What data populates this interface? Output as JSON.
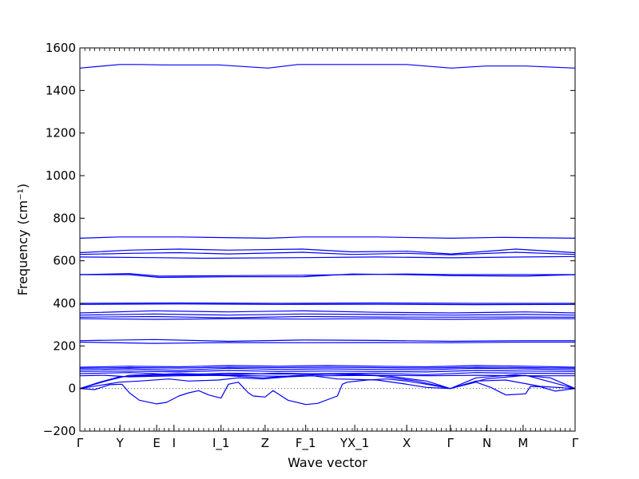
{
  "chart_data": {
    "type": "line",
    "title": "",
    "xlabel": "Wave vector",
    "ylabel": "Frequency",
    "ylabel_unit": "(cm⁻¹)",
    "ylim": [
      -200,
      1600
    ],
    "yticks": [
      -200,
      0,
      200,
      400,
      600,
      800,
      1000,
      1200,
      1400,
      1600
    ],
    "ytick_labels": [
      "−200",
      "0",
      "200",
      "400",
      "600",
      "800",
      "1000",
      "1200",
      "1400",
      "1600"
    ],
    "grid": false,
    "legend": "none",
    "zero_reference_line": 0,
    "colors": {
      "bands": "#0000ff",
      "axes": "#000000",
      "reference": "#555555"
    },
    "xlim": [
      0,
      1
    ],
    "high_symmetry_points": [
      {
        "label": "Γ",
        "x": 0.0
      },
      {
        "label": "Y",
        "x": 0.081
      },
      {
        "label": "E",
        "x": 0.155
      },
      {
        "label": "I",
        "x": 0.19
      },
      {
        "label": "I_1",
        "x": 0.285
      },
      {
        "label": "Z",
        "x": 0.374
      },
      {
        "label": "F_1",
        "x": 0.456
      },
      {
        "label": "YX_1",
        "x": 0.555
      },
      {
        "label": "X",
        "x": 0.66
      },
      {
        "label": "Γ",
        "x": 0.748
      },
      {
        "label": "N",
        "x": 0.822
      },
      {
        "label": "M",
        "x": 0.895
      },
      {
        "label": "Γ",
        "x": 1.0
      }
    ],
    "series": [
      {
        "x": [
          0.0,
          0.08,
          0.12,
          0.17,
          0.28,
          0.38,
          0.44,
          0.56,
          0.66,
          0.75,
          0.82,
          0.9,
          1.0
        ],
        "y": [
          1505,
          1522,
          1522,
          1520,
          1520,
          1505,
          1522,
          1522,
          1522,
          1505,
          1515,
          1515,
          1505
        ]
      },
      {
        "x": [
          0.0,
          0.08,
          0.2,
          0.38,
          0.45,
          0.6,
          0.75,
          0.85,
          1.0
        ],
        "y": [
          706,
          712,
          712,
          706,
          712,
          712,
          706,
          710,
          706
        ]
      },
      {
        "x": [
          0.0,
          0.1,
          0.2,
          0.3,
          0.45,
          0.55,
          0.66,
          0.75,
          0.88,
          1.0
        ],
        "y": [
          638,
          650,
          655,
          650,
          655,
          642,
          645,
          632,
          655,
          638
        ]
      },
      {
        "x": [
          0.0,
          0.1,
          0.2,
          0.3,
          0.45,
          0.55,
          0.66,
          0.75,
          0.88,
          1.0
        ],
        "y": [
          630,
          635,
          638,
          632,
          640,
          630,
          635,
          628,
          640,
          630
        ]
      },
      {
        "x": [
          0.0,
          0.15,
          0.25,
          0.45,
          0.6,
          0.75,
          0.9,
          1.0
        ],
        "y": [
          618,
          615,
          612,
          615,
          618,
          614,
          618,
          620
        ]
      },
      {
        "x": [
          0.0,
          0.1,
          0.16,
          0.3,
          0.45,
          0.55,
          0.66,
          0.75,
          0.9,
          1.0
        ],
        "y": [
          535,
          535,
          522,
          525,
          525,
          538,
          535,
          530,
          528,
          535
        ]
      },
      {
        "x": [
          0.0,
          0.1,
          0.16,
          0.3,
          0.45,
          0.55,
          0.66,
          0.75,
          0.9,
          1.0
        ],
        "y": [
          535,
          540,
          528,
          530,
          532,
          535,
          538,
          535,
          535,
          535
        ]
      },
      {
        "x": [
          0.0,
          0.2,
          0.4,
          0.6,
          0.8,
          1.0
        ],
        "y": [
          400,
          402,
          400,
          402,
          400,
          400
        ]
      },
      {
        "x": [
          0.0,
          0.2,
          0.4,
          0.6,
          0.8,
          1.0
        ],
        "y": [
          395,
          397,
          395,
          396,
          394,
          395
        ]
      },
      {
        "x": [
          0.0,
          0.15,
          0.3,
          0.45,
          0.6,
          0.75,
          0.9,
          1.0
        ],
        "y": [
          355,
          365,
          360,
          365,
          358,
          355,
          360,
          355
        ]
      },
      {
        "x": [
          0.0,
          0.15,
          0.3,
          0.45,
          0.6,
          0.75,
          0.9,
          1.0
        ],
        "y": [
          345,
          350,
          345,
          350,
          348,
          345,
          348,
          345
        ]
      },
      {
        "x": [
          0.0,
          0.15,
          0.3,
          0.45,
          0.6,
          0.75,
          0.9,
          1.0
        ],
        "y": [
          335,
          338,
          332,
          338,
          336,
          335,
          336,
          335
        ]
      },
      {
        "x": [
          0.0,
          0.15,
          0.3,
          0.45,
          0.6,
          0.75,
          0.9,
          1.0
        ],
        "y": [
          328,
          325,
          328,
          326,
          328,
          325,
          328,
          328
        ]
      },
      {
        "x": [
          0.0,
          0.15,
          0.3,
          0.45,
          0.6,
          0.75,
          0.9,
          1.0
        ],
        "y": [
          225,
          230,
          222,
          228,
          226,
          222,
          225,
          225
        ]
      },
      {
        "x": [
          0.0,
          0.15,
          0.3,
          0.45,
          0.6,
          0.75,
          0.9,
          1.0
        ],
        "y": [
          218,
          212,
          216,
          215,
          216,
          215,
          218,
          218
        ]
      },
      {
        "x": [
          0.0,
          0.1,
          0.2,
          0.3,
          0.4,
          0.5,
          0.6,
          0.7,
          0.8,
          0.9,
          1.0
        ],
        "y": [
          100,
          105,
          102,
          108,
          105,
          108,
          105,
          102,
          108,
          105,
          100
        ]
      },
      {
        "x": [
          0.0,
          0.1,
          0.2,
          0.3,
          0.4,
          0.5,
          0.6,
          0.7,
          0.8,
          0.9,
          1.0
        ],
        "y": [
          95,
          98,
          96,
          100,
          98,
          100,
          98,
          96,
          100,
          98,
          95
        ]
      },
      {
        "x": [
          0.0,
          0.1,
          0.2,
          0.3,
          0.4,
          0.5,
          0.6,
          0.7,
          0.8,
          0.9,
          1.0
        ],
        "y": [
          88,
          92,
          85,
          95,
          90,
          92,
          90,
          88,
          95,
          92,
          88
        ]
      },
      {
        "x": [
          0.0,
          0.1,
          0.2,
          0.3,
          0.4,
          0.5,
          0.6,
          0.7,
          0.8,
          0.9,
          1.0
        ],
        "y": [
          80,
          82,
          78,
          85,
          80,
          82,
          80,
          78,
          85,
          82,
          80
        ]
      },
      {
        "x": [
          0.0,
          0.1,
          0.2,
          0.3,
          0.4,
          0.5,
          0.6,
          0.7,
          0.8,
          0.9,
          1.0
        ],
        "y": [
          70,
          75,
          65,
          72,
          68,
          70,
          72,
          65,
          75,
          72,
          70
        ]
      },
      {
        "x": [
          0.0,
          0.05,
          0.1,
          0.2,
          0.3,
          0.4,
          0.5,
          0.6,
          0.7,
          0.8,
          0.9,
          1.0
        ],
        "y": [
          60,
          62,
          55,
          60,
          62,
          58,
          60,
          62,
          60,
          62,
          60,
          60
        ]
      },
      {
        "x": [
          0.0,
          0.04,
          0.08,
          0.15,
          0.22,
          0.3,
          0.37,
          0.44,
          0.53,
          0.62,
          0.7,
          0.748,
          0.8,
          0.88,
          0.95,
          1.0
        ],
        "y": [
          0,
          30,
          55,
          62,
          65,
          60,
          50,
          62,
          70,
          60,
          35,
          0,
          50,
          65,
          50,
          0
        ]
      },
      {
        "x": [
          0.0,
          0.06,
          0.1,
          0.2,
          0.3,
          0.4,
          0.5,
          0.6,
          0.68,
          0.748,
          0.82,
          0.9,
          1.0
        ],
        "y": [
          0,
          40,
          62,
          70,
          65,
          72,
          68,
          60,
          35,
          0,
          45,
          62,
          0
        ]
      },
      {
        "x": [
          0.0,
          0.03,
          0.06,
          0.085,
          0.1,
          0.12,
          0.155,
          0.175,
          0.2,
          0.22,
          0.24,
          0.26,
          0.285,
          0.3,
          0.32,
          0.34,
          0.35,
          0.374,
          0.39,
          0.42,
          0.456,
          0.48,
          0.52,
          0.53,
          0.54,
          0.58,
          0.62,
          0.66,
          0.7,
          0.748,
          0.8,
          0.83,
          0.86,
          0.9,
          0.91,
          0.93,
          0.96,
          1.0
        ],
        "y": [
          0,
          -5,
          18,
          20,
          -20,
          -55,
          -72,
          -65,
          -35,
          -20,
          -10,
          -30,
          -45,
          20,
          30,
          -20,
          -35,
          -40,
          -10,
          -55,
          -75,
          -70,
          -35,
          20,
          30,
          40,
          45,
          35,
          20,
          0,
          30,
          5,
          -30,
          -25,
          10,
          8,
          -12,
          0
        ]
      },
      {
        "x": [
          0.0,
          0.04,
          0.08,
          0.12,
          0.18,
          0.22,
          0.28,
          0.32,
          0.37,
          0.42,
          0.47,
          0.52,
          0.6,
          0.66,
          0.7,
          0.748,
          0.8,
          0.86,
          0.93,
          1.0
        ],
        "y": [
          0,
          15,
          30,
          35,
          45,
          35,
          40,
          50,
          45,
          55,
          60,
          45,
          40,
          20,
          5,
          0,
          35,
          40,
          10,
          0
        ]
      }
    ]
  }
}
